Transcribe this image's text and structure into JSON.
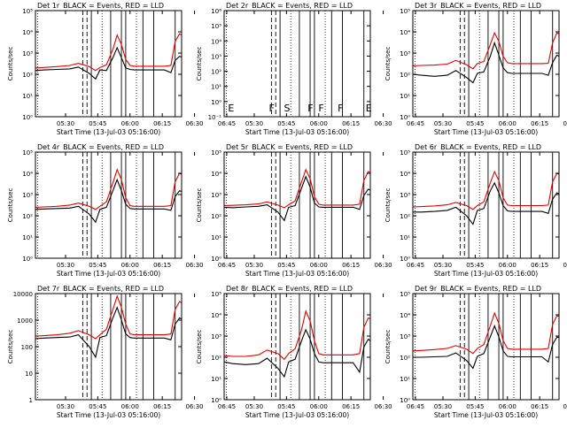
{
  "colors": {
    "events": "#000000",
    "lld": "#e00000",
    "axis": "#000000"
  },
  "common": {
    "ylabel": "Counts/sec",
    "xlabel": "Start Time (13-Jul-03 05:16:00)",
    "title_suffix": "BLACK = Events, RED = LLD",
    "xticks": [
      "05:30",
      "05:45",
      "06:00",
      "06:15",
      "06:30",
      "06:45"
    ]
  },
  "chart_data": [
    {
      "type": "line",
      "title": "Det 1r",
      "yticks": [
        "10⁰",
        "10¹",
        "10²",
        "10³",
        "10⁴",
        "10⁵"
      ],
      "ylim": [
        1,
        100000
      ],
      "xlim_min": [
        0,
        68
      ],
      "series": [
        {
          "name": "Events",
          "x": [
            0,
            4,
            10,
            16,
            20,
            25,
            28,
            30,
            33,
            36,
            38,
            40,
            42,
            44,
            46,
            50,
            55,
            60,
            63,
            65,
            67,
            68
          ],
          "y": [
            150,
            160,
            170,
            180,
            220,
            110,
            60,
            160,
            150,
            600,
            1800,
            600,
            200,
            170,
            160,
            160,
            160,
            160,
            120,
            450,
            700,
            650
          ]
        },
        {
          "name": "LLD",
          "x": [
            0,
            4,
            10,
            16,
            20,
            25,
            28,
            30,
            33,
            36,
            38,
            40,
            42,
            44,
            46,
            50,
            55,
            60,
            63,
            65,
            67,
            68
          ],
          "y": [
            200,
            210,
            230,
            260,
            330,
            230,
            150,
            210,
            280,
            1500,
            7000,
            2500,
            500,
            260,
            240,
            240,
            240,
            240,
            260,
            3500,
            8000,
            7000
          ]
        }
      ]
    },
    {
      "type": "line",
      "title": "Det 2r",
      "yticks": [
        "10⁻¹",
        "10⁰",
        "10¹",
        "10²",
        "10³",
        "10⁴",
        "10⁵",
        "10⁶"
      ],
      "ylim": [
        0.1,
        1000000
      ],
      "xlim_min": [
        0,
        68
      ],
      "flags": [
        "E",
        "F",
        "S",
        "F",
        "F",
        "F",
        "E"
      ],
      "series": []
    },
    {
      "type": "line",
      "title": "Det 3r",
      "yticks": [
        "10⁰",
        "10¹",
        "10²",
        "10³",
        "10⁴",
        "10⁵"
      ],
      "ylim": [
        1,
        100000
      ],
      "xlim_min": [
        0,
        68
      ],
      "series": [
        {
          "name": "Events",
          "x": [
            0,
            4,
            10,
            16,
            20,
            25,
            28,
            30,
            33,
            36,
            38,
            40,
            42,
            44,
            46,
            50,
            55,
            60,
            63,
            65,
            67,
            68
          ],
          "y": [
            100,
            90,
            80,
            90,
            150,
            70,
            40,
            110,
            130,
            700,
            3000,
            800,
            200,
            120,
            110,
            110,
            110,
            110,
            90,
            350,
            800,
            700
          ]
        },
        {
          "name": "LLD",
          "x": [
            0,
            4,
            10,
            16,
            20,
            25,
            28,
            30,
            33,
            36,
            38,
            40,
            42,
            44,
            46,
            50,
            55,
            60,
            63,
            65,
            67,
            68
          ],
          "y": [
            250,
            260,
            270,
            300,
            450,
            280,
            180,
            320,
            400,
            2500,
            9000,
            3500,
            700,
            350,
            320,
            320,
            320,
            320,
            330,
            3000,
            9000,
            8000
          ]
        }
      ]
    },
    {
      "type": "line",
      "title": "Det 4r",
      "yticks": [
        "10⁰",
        "10¹",
        "10²",
        "10³",
        "10⁴",
        "10⁵"
      ],
      "ylim": [
        1,
        100000
      ],
      "xlim_min": [
        0,
        68
      ],
      "series": [
        {
          "name": "Events",
          "x": [
            0,
            4,
            10,
            16,
            20,
            25,
            28,
            30,
            33,
            36,
            38,
            40,
            42,
            44,
            46,
            50,
            55,
            60,
            63,
            65,
            67,
            68
          ],
          "y": [
            200,
            210,
            220,
            230,
            280,
            120,
            50,
            200,
            250,
            1500,
            5000,
            1500,
            350,
            220,
            210,
            210,
            210,
            210,
            180,
            800,
            1500,
            1400
          ]
        },
        {
          "name": "LLD",
          "x": [
            0,
            4,
            10,
            16,
            20,
            25,
            28,
            30,
            33,
            36,
            38,
            40,
            42,
            44,
            46,
            50,
            55,
            60,
            63,
            65,
            67,
            68
          ],
          "y": [
            250,
            260,
            280,
            320,
            400,
            280,
            200,
            280,
            450,
            3500,
            15000,
            5000,
            700,
            300,
            280,
            280,
            280,
            280,
            300,
            4000,
            10000,
            9000
          ]
        }
      ]
    },
    {
      "type": "line",
      "title": "Det 5r",
      "yticks": [
        "10⁰",
        "10¹",
        "10²",
        "10³",
        "10⁴",
        "10⁵"
      ],
      "ylim": [
        1,
        100000
      ],
      "xlim_min": [
        0,
        68
      ],
      "series": [
        {
          "name": "Events",
          "x": [
            0,
            4,
            10,
            16,
            20,
            25,
            28,
            30,
            33,
            36,
            38,
            40,
            42,
            44,
            46,
            50,
            55,
            60,
            63,
            65,
            67,
            68
          ],
          "y": [
            250,
            240,
            260,
            280,
            330,
            150,
            60,
            250,
            300,
            2000,
            7000,
            2200,
            400,
            260,
            250,
            250,
            250,
            250,
            200,
            900,
            1800,
            1600
          ]
        },
        {
          "name": "LLD",
          "x": [
            0,
            4,
            10,
            16,
            20,
            25,
            28,
            30,
            33,
            36,
            38,
            40,
            42,
            44,
            46,
            50,
            55,
            60,
            63,
            65,
            67,
            68
          ],
          "y": [
            300,
            310,
            330,
            360,
            450,
            320,
            240,
            330,
            500,
            4000,
            15000,
            5500,
            800,
            350,
            320,
            320,
            320,
            320,
            350,
            4500,
            12000,
            11000
          ]
        }
      ]
    },
    {
      "type": "line",
      "title": "Det 6r",
      "yticks": [
        "10⁰",
        "10¹",
        "10²",
        "10³",
        "10⁴",
        "10⁵"
      ],
      "ylim": [
        1,
        100000
      ],
      "xlim_min": [
        0,
        68
      ],
      "series": [
        {
          "name": "Events",
          "x": [
            0,
            4,
            10,
            16,
            20,
            25,
            28,
            30,
            33,
            36,
            38,
            40,
            42,
            44,
            46,
            50,
            55,
            60,
            63,
            65,
            67,
            68
          ],
          "y": [
            150,
            150,
            160,
            180,
            250,
            100,
            40,
            180,
            220,
            1500,
            3500,
            1200,
            300,
            170,
            160,
            160,
            160,
            160,
            130,
            600,
            1200,
            1100
          ]
        },
        {
          "name": "LLD",
          "x": [
            0,
            4,
            10,
            16,
            20,
            25,
            28,
            30,
            33,
            36,
            38,
            40,
            42,
            44,
            46,
            50,
            55,
            60,
            63,
            65,
            67,
            68
          ],
          "y": [
            260,
            270,
            290,
            330,
            420,
            300,
            200,
            300,
            450,
            3500,
            12000,
            4500,
            700,
            320,
            300,
            300,
            300,
            300,
            320,
            4000,
            10000,
            9000
          ]
        }
      ]
    },
    {
      "type": "line",
      "title": "Det 7r",
      "yticks": [
        "1",
        "10",
        "100",
        "1000",
        "10000"
      ],
      "ylim": [
        1,
        10000
      ],
      "xlim_min": [
        0,
        68
      ],
      "series": [
        {
          "name": "Events",
          "x": [
            0,
            4,
            10,
            16,
            20,
            25,
            28,
            30,
            33,
            36,
            38,
            40,
            42,
            44,
            46,
            50,
            55,
            60,
            63,
            65,
            67,
            68
          ],
          "y": [
            200,
            210,
            220,
            230,
            280,
            100,
            40,
            220,
            260,
            1200,
            3000,
            1000,
            300,
            220,
            210,
            210,
            210,
            210,
            180,
            700,
            1200,
            1100
          ]
        },
        {
          "name": "LLD",
          "x": [
            0,
            4,
            10,
            16,
            20,
            25,
            28,
            30,
            33,
            36,
            38,
            40,
            42,
            44,
            46,
            50,
            55,
            60,
            63,
            65,
            67,
            68
          ],
          "y": [
            250,
            260,
            280,
            320,
            400,
            280,
            200,
            280,
            450,
            2500,
            8000,
            3000,
            700,
            300,
            280,
            280,
            280,
            280,
            300,
            2500,
            5000,
            4500
          ]
        }
      ]
    },
    {
      "type": "line",
      "title": "Det 8r",
      "yticks": [
        "10⁰",
        "10¹",
        "10²",
        "10³",
        "10⁴",
        "10⁵"
      ],
      "ylim": [
        1,
        100000
      ],
      "xlim_min": [
        0,
        68
      ],
      "series": [
        {
          "name": "Events",
          "x": [
            0,
            4,
            10,
            16,
            20,
            25,
            28,
            30,
            33,
            36,
            38,
            40,
            42,
            44,
            46,
            50,
            55,
            60,
            63,
            65,
            67,
            68
          ],
          "y": [
            60,
            50,
            45,
            50,
            90,
            30,
            12,
            60,
            80,
            600,
            2000,
            700,
            150,
            60,
            55,
            55,
            55,
            55,
            20,
            300,
            700,
            600
          ]
        },
        {
          "name": "LLD",
          "x": [
            0,
            4,
            10,
            16,
            20,
            25,
            28,
            30,
            33,
            36,
            38,
            40,
            42,
            44,
            46,
            50,
            55,
            60,
            63,
            65,
            67,
            68
          ],
          "y": [
            120,
            110,
            110,
            130,
            220,
            150,
            80,
            150,
            250,
            2000,
            15000,
            5000,
            600,
            150,
            130,
            130,
            130,
            130,
            150,
            2500,
            7000,
            6500
          ]
        }
      ]
    },
    {
      "type": "line",
      "title": "Det 9r",
      "yticks": [
        "10⁰",
        "10¹",
        "10²",
        "10³",
        "10⁴",
        "10⁵"
      ],
      "ylim": [
        1,
        100000
      ],
      "xlim_min": [
        0,
        68
      ],
      "series": [
        {
          "name": "Events",
          "x": [
            0,
            4,
            10,
            16,
            20,
            25,
            28,
            30,
            33,
            36,
            38,
            40,
            42,
            44,
            46,
            50,
            55,
            60,
            63,
            65,
            67,
            68
          ],
          "y": [
            100,
            100,
            105,
            110,
            160,
            70,
            30,
            110,
            150,
            900,
            3000,
            900,
            200,
            110,
            105,
            105,
            105,
            105,
            60,
            400,
            900,
            850
          ]
        },
        {
          "name": "LLD",
          "x": [
            0,
            4,
            10,
            16,
            20,
            25,
            28,
            30,
            33,
            36,
            38,
            40,
            42,
            44,
            46,
            50,
            55,
            60,
            63,
            65,
            67,
            68
          ],
          "y": [
            200,
            210,
            230,
            260,
            350,
            240,
            150,
            260,
            400,
            3000,
            12000,
            4000,
            600,
            260,
            240,
            240,
            240,
            240,
            260,
            3500,
            9000,
            8500
          ]
        }
      ]
    }
  ]
}
